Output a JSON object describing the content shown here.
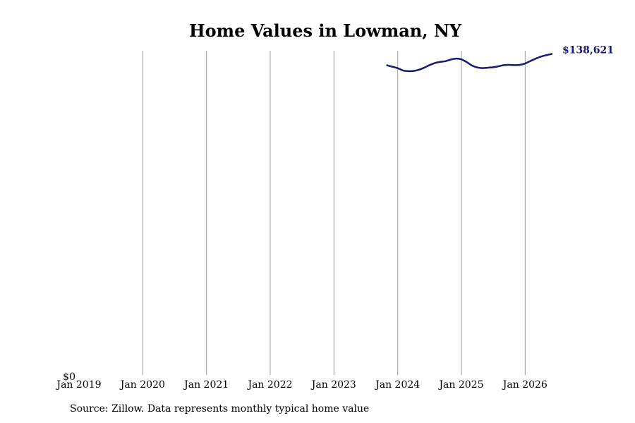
{
  "chart_data": {
    "type": "line",
    "title": "Home Values in Lowman, NY",
    "xlabel": "",
    "ylabel": "",
    "x_ticks": [
      "Jan 2019",
      "Jan 2020",
      "Jan 2021",
      "Jan 2022",
      "Jan 2023",
      "Jan 2024",
      "Jan 2025",
      "Jan 2026"
    ],
    "y_ticks": [
      {
        "value": 0,
        "label": "$0"
      }
    ],
    "xlim": [
      "2019-01",
      "2026-08"
    ],
    "ylim": [
      0,
      140000
    ],
    "grid": "vertical",
    "series": [
      {
        "color": "#191970",
        "end_label": "$138,621",
        "points": [
          {
            "x": "2023-11",
            "y": 133700
          },
          {
            "x": "2023-12",
            "y": 133100
          },
          {
            "x": "2024-01",
            "y": 132500
          },
          {
            "x": "2024-02",
            "y": 131500
          },
          {
            "x": "2024-03",
            "y": 131200
          },
          {
            "x": "2024-04",
            "y": 131300
          },
          {
            "x": "2024-05",
            "y": 131800
          },
          {
            "x": "2024-06",
            "y": 132700
          },
          {
            "x": "2024-07",
            "y": 133800
          },
          {
            "x": "2024-08",
            "y": 134700
          },
          {
            "x": "2024-09",
            "y": 135200
          },
          {
            "x": "2024-10",
            "y": 135500
          },
          {
            "x": "2024-11",
            "y": 136200
          },
          {
            "x": "2024-12",
            "y": 136600
          },
          {
            "x": "2025-01",
            "y": 136300
          },
          {
            "x": "2025-02",
            "y": 135100
          },
          {
            "x": "2025-03",
            "y": 133600
          },
          {
            "x": "2025-04",
            "y": 132800
          },
          {
            "x": "2025-05",
            "y": 132500
          },
          {
            "x": "2025-06",
            "y": 132700
          },
          {
            "x": "2025-07",
            "y": 132900
          },
          {
            "x": "2025-08",
            "y": 133300
          },
          {
            "x": "2025-09",
            "y": 133800
          },
          {
            "x": "2025-10",
            "y": 133900
          },
          {
            "x": "2025-11",
            "y": 133800
          },
          {
            "x": "2025-12",
            "y": 133900
          },
          {
            "x": "2026-01",
            "y": 134500
          },
          {
            "x": "2026-02",
            "y": 135600
          },
          {
            "x": "2026-03",
            "y": 136600
          },
          {
            "x": "2026-04",
            "y": 137500
          },
          {
            "x": "2026-05",
            "y": 138100
          },
          {
            "x": "2026-06",
            "y": 138621
          }
        ]
      }
    ]
  },
  "footer": {
    "source": "Source: Zillow. Data represents monthly typical home value"
  }
}
